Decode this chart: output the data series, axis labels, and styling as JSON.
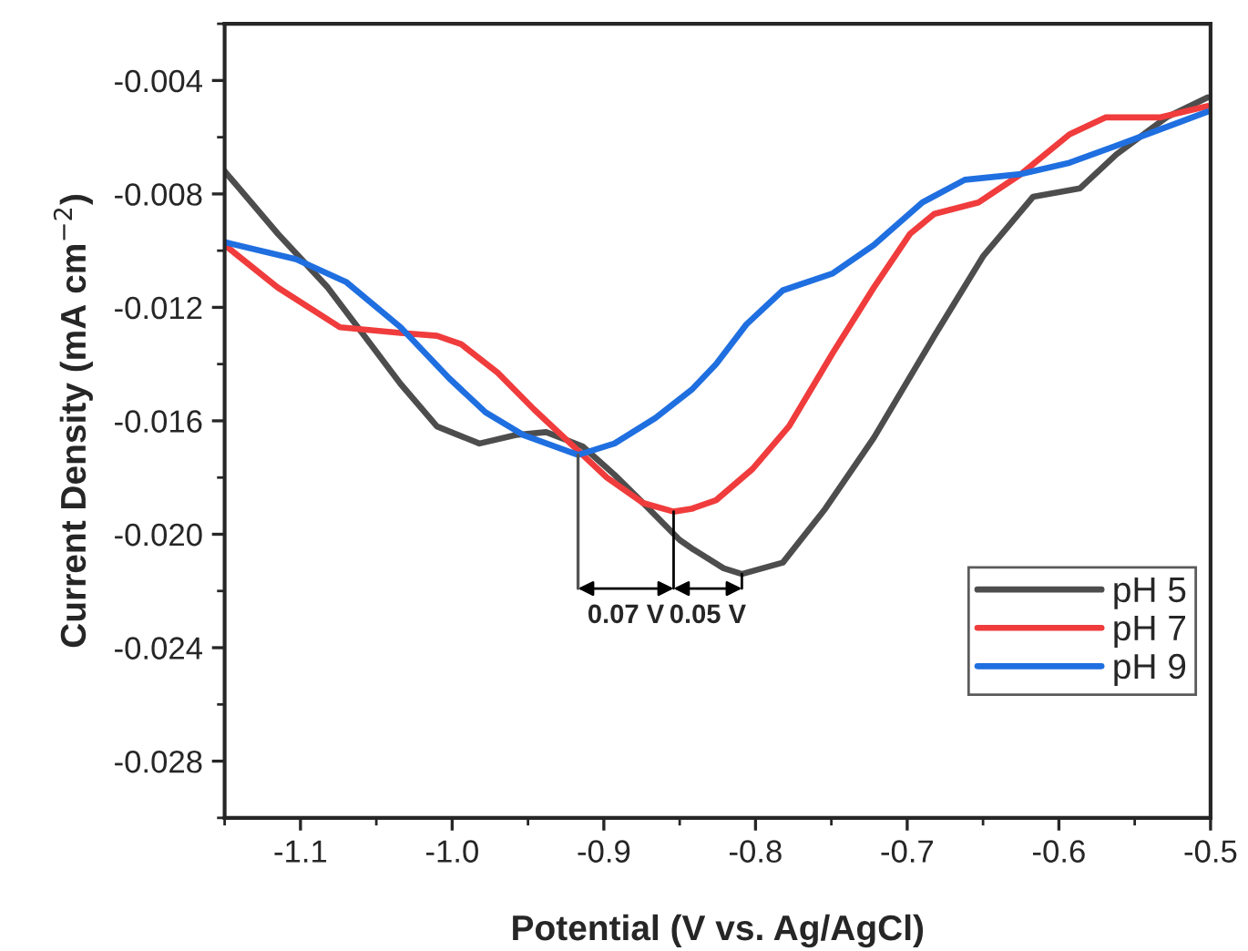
{
  "chart_data": {
    "type": "line",
    "xlabel": "Potential (V vs. Ag/AgCl)",
    "ylabel": "Current Density (mA cm$^{−2}$)",
    "xlim": [
      -1.15,
      -0.5
    ],
    "ylim": [
      -0.03,
      -0.002
    ],
    "xticks": [
      -1.1,
      {
        "value": -1.0,
        "label": "-1.0"
      },
      -0.9,
      -0.8,
      -0.7,
      -0.6,
      -0.5
    ],
    "yticks": [
      -0.004,
      -0.008,
      -0.012,
      -0.016,
      {
        "value": -0.02,
        "label": "-0.020"
      },
      -0.024,
      -0.028
    ],
    "grid": false,
    "legend": "bottom right",
    "marker": "none",
    "line_style": "solid",
    "annotations": [
      "0.07 V",
      "0.05 V"
    ],
    "series": [
      {
        "name": "pH 5",
        "color": "#4d4d4d",
        "x": [
          -1.15,
          -1.115,
          -1.082,
          -1.058,
          -1.034,
          -1.01,
          -0.982,
          -0.958,
          -0.938,
          -0.914,
          -0.893,
          -0.874,
          -0.85,
          -0.842,
          -0.821,
          -0.809,
          -0.782,
          -0.754,
          -0.722,
          -0.682,
          -0.65,
          -0.617,
          -0.586,
          -0.562,
          -0.529,
          -0.502
        ],
        "values": [
          -0.0072,
          -0.0094,
          -0.0113,
          -0.013,
          -0.0147,
          -0.0162,
          -0.0168,
          -0.0165,
          -0.0164,
          -0.0169,
          -0.0179,
          -0.0189,
          -0.0202,
          -0.0205,
          -0.0212,
          -0.0214,
          -0.021,
          -0.0191,
          -0.0166,
          -0.013,
          -0.0102,
          -0.0081,
          -0.0078,
          -0.0066,
          -0.0053,
          -0.0046
        ]
      },
      {
        "name": "pH 7",
        "color": "#f03c3c",
        "x": [
          -1.15,
          -1.115,
          -1.074,
          -1.034,
          -1.01,
          -0.994,
          -0.97,
          -0.946,
          -0.922,
          -0.898,
          -0.874,
          -0.854,
          -0.842,
          -0.826,
          -0.802,
          -0.778,
          -0.749,
          -0.722,
          -0.698,
          -0.682,
          -0.653,
          -0.625,
          -0.593,
          -0.569,
          -0.533,
          -0.502
        ],
        "values": [
          -0.0098,
          -0.0113,
          -0.0127,
          -0.0129,
          -0.013,
          -0.0133,
          -0.0143,
          -0.0156,
          -0.0168,
          -0.018,
          -0.0189,
          -0.0192,
          -0.0191,
          -0.0188,
          -0.0177,
          -0.0162,
          -0.0136,
          -0.0113,
          -0.0094,
          -0.0087,
          -0.0083,
          -0.0073,
          -0.0059,
          -0.0053,
          -0.0053,
          -0.0049
        ]
      },
      {
        "name": "pH 9",
        "color": "#1f6fe0",
        "x": [
          -1.15,
          -1.103,
          -1.07,
          -1.034,
          -1.002,
          -0.978,
          -0.953,
          -0.917,
          -0.893,
          -0.866,
          -0.842,
          -0.826,
          -0.806,
          -0.782,
          -0.749,
          -0.722,
          -0.69,
          -0.662,
          -0.625,
          -0.593,
          -0.562,
          -0.502
        ],
        "values": [
          -0.0097,
          -0.0103,
          -0.0111,
          -0.0127,
          -0.0145,
          -0.0157,
          -0.0165,
          -0.0172,
          -0.0168,
          -0.0159,
          -0.0149,
          -0.014,
          -0.0126,
          -0.0114,
          -0.0108,
          -0.0098,
          -0.0083,
          -0.0075,
          -0.0073,
          -0.0069,
          -0.0063,
          -0.0051
        ]
      }
    ]
  }
}
